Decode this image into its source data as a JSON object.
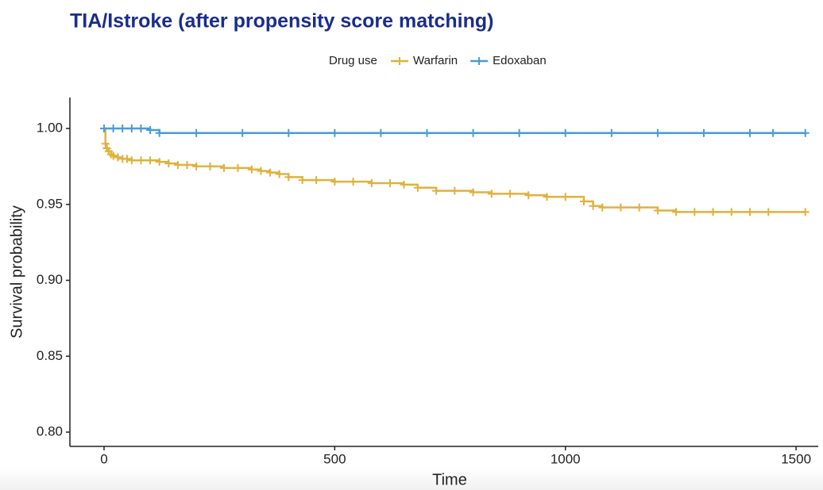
{
  "chart_data": {
    "type": "step",
    "title": "TIA/Istroke (after propensity score matching)",
    "x_label": "Time",
    "y_label": "Survival probability",
    "legend_title": "Drug use",
    "legend_position": "top",
    "xlim": [
      -74,
      1548
    ],
    "ylim": [
      0.7906,
      1.0204
    ],
    "xticks": [
      0,
      500,
      1000,
      1500
    ],
    "yticks": [
      {
        "value": 0.8,
        "label": "0.80"
      },
      0.85,
      {
        "value": 0.9,
        "label": "0.90"
      },
      0.95,
      {
        "value": 1,
        "label": "1.00"
      }
    ],
    "series": [
      {
        "name": "Warfarin",
        "color": "#e0b23c",
        "x": [
          0,
          3,
          6,
          10,
          15,
          20,
          30,
          40,
          50,
          60,
          80,
          100,
          120,
          140,
          160,
          180,
          200,
          230,
          260,
          290,
          320,
          340,
          360,
          380,
          400,
          430,
          460,
          500,
          540,
          580,
          620,
          650,
          680,
          720,
          760,
          800,
          840,
          880,
          920,
          960,
          1000,
          1040,
          1060,
          1080,
          1120,
          1160,
          1200,
          1240,
          1280,
          1320,
          1360,
          1400,
          1440,
          1520
        ],
        "values": [
          1.0,
          0.99,
          0.987,
          0.985,
          0.983,
          0.982,
          0.981,
          0.98,
          0.98,
          0.979,
          0.979,
          0.979,
          0.978,
          0.977,
          0.976,
          0.976,
          0.975,
          0.975,
          0.974,
          0.974,
          0.973,
          0.972,
          0.971,
          0.97,
          0.968,
          0.966,
          0.966,
          0.965,
          0.965,
          0.964,
          0.964,
          0.963,
          0.961,
          0.959,
          0.959,
          0.958,
          0.957,
          0.957,
          0.956,
          0.955,
          0.955,
          0.952,
          0.949,
          0.948,
          0.948,
          0.948,
          0.946,
          0.945,
          0.945,
          0.945,
          0.945,
          0.945,
          0.945,
          0.945
        ]
      },
      {
        "name": "Edoxaban",
        "color": "#4a9bd6",
        "x": [
          0,
          20,
          40,
          60,
          80,
          100,
          120,
          200,
          300,
          400,
          500,
          600,
          700,
          800,
          900,
          1000,
          1100,
          1200,
          1300,
          1400,
          1450,
          1520
        ],
        "values": [
          1,
          1,
          1,
          1,
          1,
          0.999,
          0.997,
          0.997,
          0.997,
          0.997,
          0.997,
          0.997,
          0.997,
          0.997,
          0.997,
          0.997,
          0.997,
          0.997,
          0.997,
          0.997,
          0.997,
          0.997
        ]
      }
    ]
  }
}
